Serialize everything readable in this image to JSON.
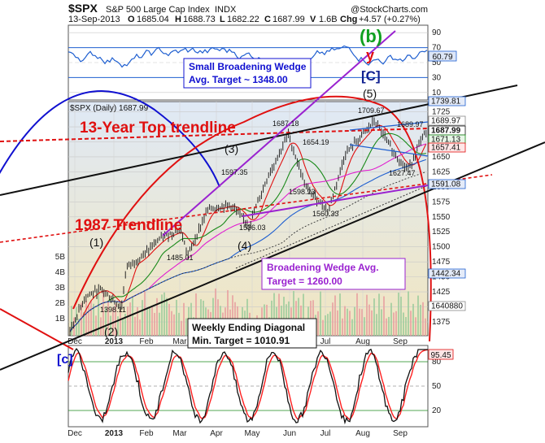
{
  "header": {
    "symbol": "$SPX",
    "name": "S&P 500 Large Cap Index",
    "exchange": "INDX",
    "watermark": "@StockCharts.com",
    "date": "13-Sep-2013",
    "open_label": "O",
    "open": "1685.04",
    "high_label": "H",
    "high": "1688.73",
    "low_label": "L",
    "low": "1682.22",
    "close_label": "C",
    "close": "1687.99",
    "volume_label": "V",
    "volume": "1.6B",
    "change_label": "Chg",
    "change": "+4.57 (+0.27%)",
    "main_legend": "$SPX (Daily) 1687.99"
  },
  "colors": {
    "price_bg_top": "#dfe9f6",
    "price_bg_bottom": "#f1e6c0",
    "rsi_line": "#1f5fd0",
    "red": "#e01010",
    "purple": "#9a22d0",
    "blue": "#1010d0",
    "green": "#10a020",
    "dark_blue": "#102090"
  },
  "chart_data": [
    {
      "type": "line",
      "panel": "price",
      "x_tick_labels": [
        "Dec",
        "2013",
        "Feb",
        "Mar",
        "Apr",
        "May",
        "Jun",
        "Jul",
        "Aug",
        "Sep"
      ],
      "y_ticks": [
        1375,
        1400,
        1425,
        1450,
        1475,
        1500,
        1525,
        1550,
        1575,
        1600,
        1625,
        1650,
        1675,
        1700,
        1725
      ],
      "ylim": [
        1352,
        1742
      ],
      "scale": "linear",
      "grid": true,
      "volume_ticks": [
        "1B",
        "2B",
        "3B",
        "4B",
        "5B"
      ],
      "series": [
        {
          "x": [
            "2012-11-16",
            "2012-11-30",
            "2012-12-14",
            "2012-12-31",
            "2013-01-04",
            "2013-01-18",
            "2013-02-01",
            "2013-02-19",
            "2013-02-25",
            "2013-03-14",
            "2013-04-02",
            "2013-04-18",
            "2013-05-03",
            "2013-05-21",
            "2013-06-05",
            "2013-06-24",
            "2013-07-08",
            "2013-07-22",
            "2013-08-02",
            "2013-08-19",
            "2013-08-30",
            "2013-09-13"
          ],
          "values": [
            1353,
            1416,
            1430,
            1398.11,
            1466,
            1485,
            1513,
            1530,
            1485.01,
            1563,
            1570,
            1536.03,
            1614,
            1687.18,
            1598.23,
            1560.33,
            1654.19,
            1685,
            1709.67,
            1655,
            1627.47,
            1687.99
          ]
        }
      ],
      "price_tags": [
        "1739.81",
        "1689.97",
        "1687.99",
        "1671.13",
        "1657.41",
        "1591.08",
        "1442.34",
        "1640880"
      ],
      "point_labels": [
        "1709.67",
        "1687.18",
        "1654.19",
        "1597.35",
        "1598.23",
        "1560.33",
        "1536.03",
        "1485.01",
        "1398.11",
        "1689.97",
        "1627.47"
      ],
      "wave_labels": [
        "(1)",
        "(2)",
        "(3)",
        "(4)",
        "(5)",
        "(b)",
        "y",
        "[C]",
        "[c]"
      ],
      "annotations": [
        {
          "text": "13-Year Top trendline"
        },
        {
          "text": "1987 Trendline"
        },
        {
          "lines": [
            "Small Broadening Wedge",
            "Avg. Target ~ 1348.00"
          ]
        },
        {
          "lines": [
            "Broadening Wedge Avg.",
            "Target = 1260.00"
          ]
        },
        {
          "lines": [
            "Weekly Ending Diagonal",
            "Min. Target = 1010.91"
          ]
        }
      ]
    },
    {
      "type": "line",
      "panel": "rsi-top",
      "y_ticks": [
        10,
        30,
        50,
        70,
        90
      ],
      "ylim": [
        0,
        100
      ],
      "last_value": "60.79"
    },
    {
      "type": "line",
      "panel": "oscillator-bottom",
      "y_ticks": [
        20,
        50,
        80
      ],
      "ylim": [
        0,
        100
      ],
      "last_value": "95.45",
      "x_tick_labels": [
        "Dec",
        "2013",
        "Feb",
        "Mar",
        "Apr",
        "May",
        "Jun",
        "Jul",
        "Aug",
        "Sep"
      ]
    }
  ]
}
